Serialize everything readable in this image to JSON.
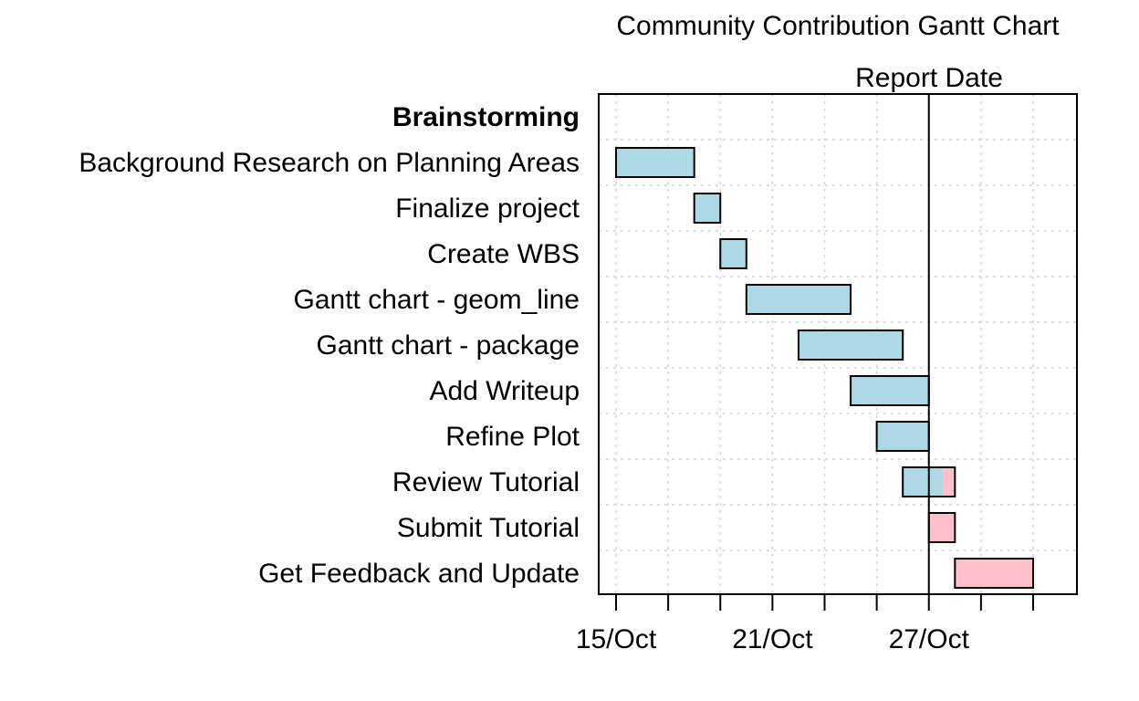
{
  "chart_data": {
    "type": "gantt",
    "title": "Community Contribution Gantt Chart",
    "report_date": "2020-10-27",
    "report_date_label": "Report Date",
    "x_range": [
      "2020-10-14",
      "2020-11-01"
    ],
    "x_ticks": [
      {
        "date": "2020-10-15",
        "label": "15/Oct"
      },
      {
        "date": "2020-10-17",
        "label": ""
      },
      {
        "date": "2020-10-19",
        "label": ""
      },
      {
        "date": "2020-10-21",
        "label": "21/Oct"
      },
      {
        "date": "2020-10-23",
        "label": ""
      },
      {
        "date": "2020-10-25",
        "label": ""
      },
      {
        "date": "2020-10-27",
        "label": "27/Oct"
      },
      {
        "date": "2020-10-29",
        "label": ""
      },
      {
        "date": "2020-10-31",
        "label": ""
      }
    ],
    "grid": true,
    "colors": {
      "completed": "#add8e6",
      "remaining": "#ffc0cb",
      "border": "#000000",
      "grid": "#d3d3d3"
    },
    "tasks": [
      {
        "label": "Brainstorming",
        "header": true
      },
      {
        "label": "Background Research on Planning Areas",
        "start": "2020-10-15",
        "end": "2020-10-18"
      },
      {
        "label": "Finalize project",
        "start": "2020-10-18",
        "end": "2020-10-19"
      },
      {
        "label": "Create WBS",
        "start": "2020-10-19",
        "end": "2020-10-20"
      },
      {
        "label": "Gantt chart - geom_line",
        "start": "2020-10-20",
        "end": "2020-10-24"
      },
      {
        "label": "Gantt chart - package",
        "start": "2020-10-22",
        "end": "2020-10-26"
      },
      {
        "label": "Add Writeup",
        "start": "2020-10-24",
        "end": "2020-10-27"
      },
      {
        "label": "Refine Plot",
        "start": "2020-10-25",
        "end": "2020-10-27"
      },
      {
        "label": "Review Tutorial",
        "start": "2020-10-26",
        "end": "2020-10-28"
      },
      {
        "label": "Submit Tutorial",
        "start": "2020-10-27",
        "end": "2020-10-28"
      },
      {
        "label": "Get Feedback and Update",
        "start": "2020-10-28",
        "end": "2020-10-31"
      }
    ]
  }
}
